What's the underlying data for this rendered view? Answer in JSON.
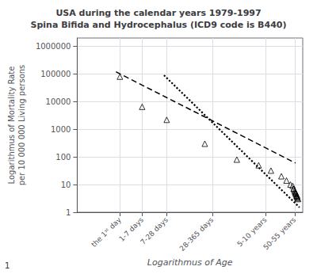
{
  "chart_data": {
    "type": "scatter",
    "title": "USA during the calendar years 1979-1997\nSpina Bifida and Hydrocephalus (ICD9 code is B440)",
    "xlabel": "Logarithmus of Age",
    "ylabel": "Logarithmus of Mortality Rate\nper 10 000 000 Living persons",
    "annotations": [
      "1"
    ],
    "log": true,
    "grid": true,
    "series": [
      {
        "type": "scatter",
        "marker": "triangle",
        "color": "#000000",
        "x": [
          1,
          3.5,
          14,
          120,
          730,
          2500,
          5000,
          9000,
          12000,
          15000,
          18000,
          20000,
          22000
        ],
        "values": [
          80000,
          6500,
          2200,
          300,
          80,
          50,
          32,
          20,
          14,
          10,
          7,
          5,
          4
        ]
      },
      {
        "type": "scatter",
        "marker": "triangle",
        "color": "#000000",
        "x": [
          17000,
          18000,
          19000,
          19500,
          20000,
          20500,
          21000,
          21500,
          22000,
          22500,
          23000
        ],
        "values": [
          9,
          7,
          6,
          5.5,
          5,
          4.5,
          4,
          3.8,
          3.5,
          3.2,
          3.0
        ]
      },
      {
        "type": "line",
        "line_style": "dashed",
        "color": "#000000",
        "x": [
          0.8,
          20000
        ],
        "values": [
          120000,
          60
        ]
      },
      {
        "type": "line",
        "line_style": "dotted",
        "color": "#000000",
        "x": [
          12,
          25000
        ],
        "values": [
          90000,
          1.5
        ]
      }
    ],
    "xlim": [
      0.09,
      30000
    ],
    "xticks": [
      {
        "value": 1,
        "label": "the 1ˢᵗ day"
      },
      {
        "value": 3.5,
        "label": "1-7 days"
      },
      {
        "value": 14,
        "label": "7-28 days"
      },
      {
        "value": 182,
        "label": "28-365 days"
      },
      {
        "value": 3650,
        "label": "5-10 years"
      },
      {
        "value": 19000,
        "label": "50-55 years"
      }
    ],
    "ylim": [
      1,
      2000000
    ],
    "yticks": [
      1,
      10,
      100,
      1000,
      10000,
      100000,
      1000000
    ]
  }
}
